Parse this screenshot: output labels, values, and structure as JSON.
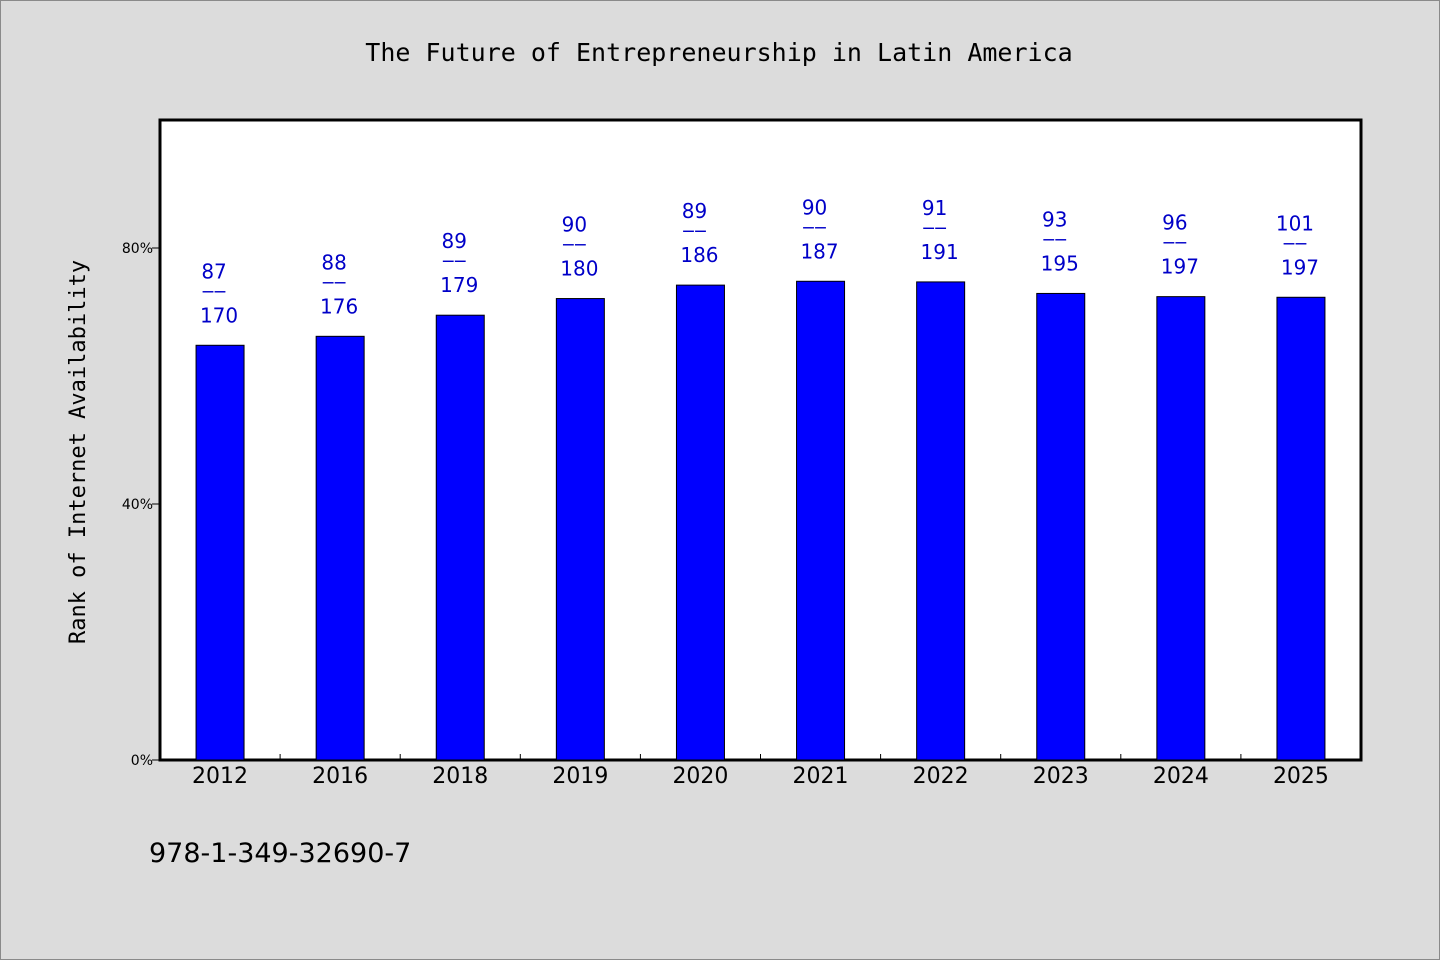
{
  "chart_data": {
    "type": "bar",
    "title": "The Future of Entrepreneurship in Latin America",
    "xlabel": "",
    "ylabel": "Rank of Internet Availability",
    "ylim": [
      0,
      100
    ],
    "y_ticks": [
      {
        "value": 0,
        "label": "0%"
      },
      {
        "value": 40,
        "label": "40%"
      },
      {
        "value": 80,
        "label": "80%"
      }
    ],
    "grid": false,
    "legend": "none",
    "bar_color": "#0000ff",
    "label_color": "#0000c8",
    "categories": [
      "2012",
      "2016",
      "2018",
      "2019",
      "2020",
      "2021",
      "2022",
      "2023",
      "2024",
      "2025"
    ],
    "values": [
      64.8,
      66.2,
      69.5,
      72.1,
      74.2,
      74.8,
      74.7,
      72.9,
      72.4,
      72.3
    ],
    "data_labels": [
      {
        "top": "87",
        "sep": "——",
        "bottom": "170"
      },
      {
        "top": "88",
        "sep": "——",
        "bottom": "176"
      },
      {
        "top": "89",
        "sep": "——",
        "bottom": "179"
      },
      {
        "top": "90",
        "sep": "——",
        "bottom": "180"
      },
      {
        "top": "89",
        "sep": "——",
        "bottom": "186"
      },
      {
        "top": "90",
        "sep": "——",
        "bottom": "187"
      },
      {
        "top": "91",
        "sep": "——",
        "bottom": "191"
      },
      {
        "top": "93",
        "sep": "——",
        "bottom": "195"
      },
      {
        "top": "96",
        "sep": "——",
        "bottom": "197"
      },
      {
        "top": "101",
        "sep": "——",
        "bottom": "197"
      }
    ]
  },
  "footnote": "978-1-349-32690-7"
}
